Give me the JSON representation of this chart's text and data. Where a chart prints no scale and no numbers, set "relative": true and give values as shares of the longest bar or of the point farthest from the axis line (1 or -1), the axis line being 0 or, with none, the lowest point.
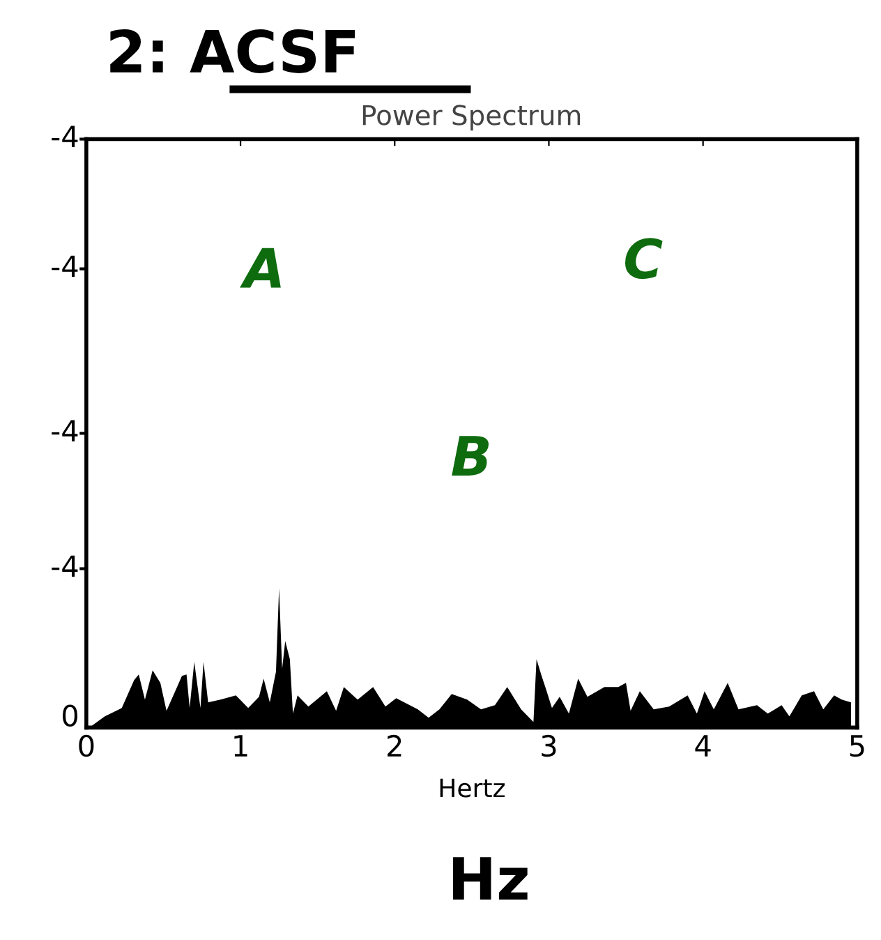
{
  "chart_data": {
    "type": "area",
    "title": "2: ACSF",
    "subtitle": "Power Spectrum",
    "xlabel": "Hertz",
    "relative": true,
    "x": [
      0.02,
      0.12,
      0.23,
      0.31,
      0.34,
      0.38,
      0.43,
      0.48,
      0.52,
      0.62,
      0.65,
      0.67,
      0.7,
      0.74,
      0.76,
      0.79,
      0.87,
      0.97,
      1.05,
      1.12,
      1.15,
      1.19,
      1.23,
      1.25,
      1.27,
      1.29,
      1.32,
      1.34,
      1.37,
      1.44,
      1.56,
      1.62,
      1.67,
      1.76,
      1.86,
      1.94,
      2.01,
      2.15,
      2.22,
      2.29,
      2.37,
      2.47,
      2.56,
      2.65,
      2.73,
      2.82,
      2.9,
      2.92,
      2.95,
      2.98,
      3.02,
      3.07,
      3.13,
      3.19,
      3.25,
      3.36,
      3.45,
      3.5,
      3.53,
      3.59,
      3.68,
      3.78,
      3.9,
      3.96,
      4.01,
      4.07,
      4.16,
      4.23,
      4.35,
      4.42,
      4.51,
      4.56,
      4.64,
      4.72,
      4.78,
      4.85,
      4.9,
      4.96
    ],
    "series": [
      {
        "color": "#000000",
        "values": [
          0,
          0.08,
          0.14,
          0.34,
          0.38,
          0.2,
          0.41,
          0.32,
          0.12,
          0.37,
          0.38,
          0.14,
          0.47,
          0.14,
          0.47,
          0.18,
          0.2,
          0.23,
          0.14,
          0.22,
          0.35,
          0.18,
          0.4,
          1.0,
          0.42,
          0.62,
          0.49,
          0.1,
          0.23,
          0.15,
          0.26,
          0.12,
          0.29,
          0.2,
          0.29,
          0.15,
          0.21,
          0.13,
          0.07,
          0.13,
          0.24,
          0.2,
          0.13,
          0.16,
          0.29,
          0.13,
          0.04,
          0.49,
          0.38,
          0.28,
          0.14,
          0.22,
          0.1,
          0.35,
          0.22,
          0.29,
          0.29,
          0.32,
          0.12,
          0.26,
          0.13,
          0.15,
          0.23,
          0.1,
          0.26,
          0.13,
          0.32,
          0.13,
          0.16,
          0.1,
          0.16,
          0.08,
          0.23,
          0.26,
          0.13,
          0.23,
          0.2,
          0.18
        ]
      }
    ],
    "xlim": [
      0,
      5
    ],
    "xticks": [
      0,
      1,
      2,
      3,
      4,
      5
    ],
    "annotations": [
      "A",
      "B",
      "C",
      "Hz",
      "-4",
      "-4",
      "-4",
      "-4",
      "0"
    ]
  }
}
